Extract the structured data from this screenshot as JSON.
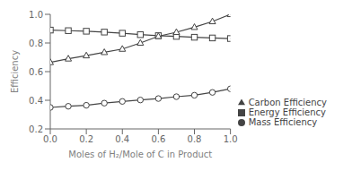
{
  "chart_data": {
    "type": "line",
    "xlabel": "Moles of H₂/Mole of C in Product",
    "ylabel": "Efficiency",
    "x": [
      0.0,
      0.1,
      0.2,
      0.3,
      0.4,
      0.5,
      0.6,
      0.7,
      0.8,
      0.9,
      1.0
    ],
    "series": [
      {
        "name": "Energy Efficiency",
        "color": "#444444",
        "marker": "square",
        "values": [
          0.89,
          0.886,
          0.882,
          0.876,
          0.868,
          0.858,
          0.851,
          0.846,
          0.84,
          0.835,
          0.831
        ]
      },
      {
        "name": "Carbon Efficiency",
        "color": "#444444",
        "marker": "triangle",
        "values": [
          0.665,
          0.69,
          0.712,
          0.735,
          0.758,
          0.8,
          0.847,
          0.875,
          0.91,
          0.95,
          1.0
        ]
      },
      {
        "name": "Mass Efficiency",
        "color": "#444444",
        "marker": "circle",
        "values": [
          0.35,
          0.358,
          0.365,
          0.38,
          0.392,
          0.402,
          0.412,
          0.425,
          0.435,
          0.455,
          0.48
        ]
      }
    ],
    "xlim": [
      0.0,
      1.0
    ],
    "ylim": [
      0.2,
      1.0
    ],
    "xticks": [
      {
        "value": 0,
        "label": "0.0"
      },
      0.2,
      0.4,
      0.6,
      0.8,
      {
        "value": 1,
        "label": "1.0"
      }
    ],
    "yticks": [
      0.2,
      0.4,
      0.6,
      0.8,
      {
        "value": 1,
        "label": "1.0"
      }
    ],
    "grid": false,
    "legend": "lower right"
  }
}
